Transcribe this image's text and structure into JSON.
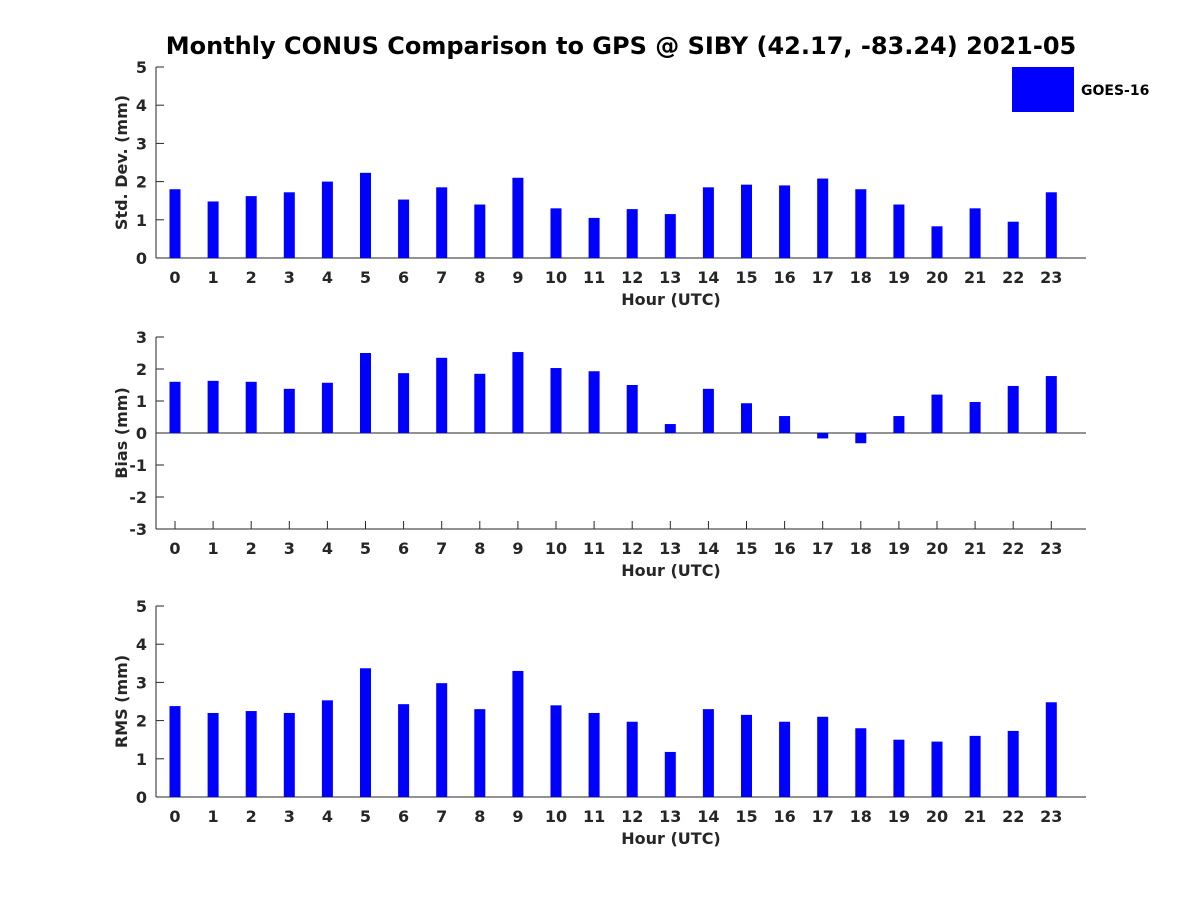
{
  "title": "Monthly CONUS Comparison to GPS @ SIBY (42.17, -83.24) 2021-05",
  "legend": {
    "label": "GOES-16",
    "color": "#0000ff"
  },
  "chart_data": [
    {
      "type": "bar",
      "xlabel": "Hour (UTC)",
      "ylabel": "Std. Dev. (mm)",
      "ylim": [
        0,
        5
      ],
      "yticks": [
        0,
        1,
        2,
        3,
        4,
        5
      ],
      "categories": [
        "0",
        "1",
        "2",
        "3",
        "4",
        "5",
        "6",
        "7",
        "8",
        "9",
        "10",
        "11",
        "12",
        "13",
        "14",
        "15",
        "16",
        "17",
        "18",
        "19",
        "20",
        "21",
        "22",
        "23"
      ],
      "series": [
        {
          "name": "GOES-16",
          "color": "#0000ff",
          "values": [
            1.8,
            1.48,
            1.62,
            1.72,
            2.0,
            2.23,
            1.53,
            1.85,
            1.4,
            2.1,
            1.3,
            1.05,
            1.28,
            1.15,
            1.85,
            1.92,
            1.9,
            2.08,
            1.8,
            1.4,
            0.83,
            1.3,
            0.95,
            1.72
          ]
        }
      ],
      "legend": "top-right",
      "grid": false
    },
    {
      "type": "bar",
      "xlabel": "Hour (UTC)",
      "ylabel": "Bias (mm)",
      "ylim": [
        -3,
        3
      ],
      "yticks": [
        -3,
        -2,
        -1,
        0,
        1,
        2,
        3
      ],
      "categories": [
        "0",
        "1",
        "2",
        "3",
        "4",
        "5",
        "6",
        "7",
        "8",
        "9",
        "10",
        "11",
        "12",
        "13",
        "14",
        "15",
        "16",
        "17",
        "18",
        "19",
        "20",
        "21",
        "22",
        "23"
      ],
      "series": [
        {
          "name": "GOES-16",
          "color": "#0000ff",
          "values": [
            1.6,
            1.63,
            1.6,
            1.38,
            1.57,
            2.5,
            1.87,
            2.35,
            1.85,
            2.53,
            2.03,
            1.93,
            1.5,
            0.28,
            1.38,
            0.93,
            0.53,
            -0.17,
            -0.32,
            0.53,
            1.2,
            0.97,
            1.47,
            1.78
          ]
        }
      ],
      "grid": false
    },
    {
      "type": "bar",
      "xlabel": "Hour (UTC)",
      "ylabel": "RMS (mm)",
      "ylim": [
        0,
        5
      ],
      "yticks": [
        0,
        1,
        2,
        3,
        4,
        5
      ],
      "categories": [
        "0",
        "1",
        "2",
        "3",
        "4",
        "5",
        "6",
        "7",
        "8",
        "9",
        "10",
        "11",
        "12",
        "13",
        "14",
        "15",
        "16",
        "17",
        "18",
        "19",
        "20",
        "21",
        "22",
        "23"
      ],
      "series": [
        {
          "name": "GOES-16",
          "color": "#0000ff",
          "values": [
            2.38,
            2.2,
            2.25,
            2.2,
            2.53,
            3.37,
            2.43,
            2.98,
            2.3,
            3.3,
            2.4,
            2.2,
            1.97,
            1.18,
            2.3,
            2.15,
            1.97,
            2.1,
            1.8,
            1.5,
            1.45,
            1.6,
            1.73,
            2.48
          ]
        }
      ],
      "grid": false
    }
  ]
}
